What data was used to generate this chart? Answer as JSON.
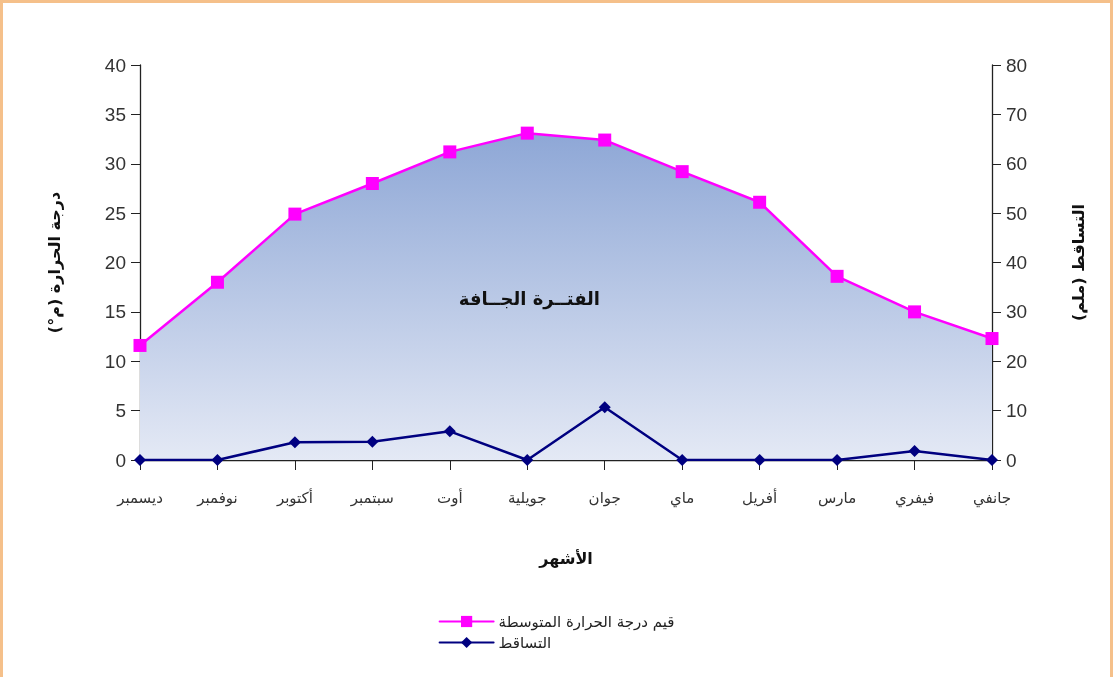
{
  "chart_data": {
    "type": "line",
    "xlabel": "الأشهر",
    "ylabel": "درجة الحرارة (م°)",
    "y2label": "التساقط (ملم)",
    "categories": [
      "ديسمبر",
      "نوفمبر",
      "أكتوبر",
      "سبتمبر",
      "أوت",
      "جويلية",
      "جوان",
      "ماي",
      "أفريل",
      "مارس",
      "فيفري",
      "جانفي"
    ],
    "series": [
      {
        "name": "قيم درجة الحرارة المتوسطة",
        "type": "area",
        "color": "#ff00ff",
        "marker": "square",
        "values": [
          11.6,
          18,
          24.9,
          28,
          31.2,
          33.1,
          32.4,
          29.2,
          26.1,
          18.6,
          15,
          12.3
        ]
      },
      {
        "name": "التساقط",
        "color": "#000080",
        "marker": "diamond",
        "axis": "y2",
        "values": [
          0,
          0,
          3.6,
          3.7,
          5.8,
          0,
          10.7,
          0,
          0,
          0,
          1.8,
          0
        ]
      }
    ],
    "ylim": [
      0,
      40
    ],
    "yticks": [
      0,
      5,
      10,
      15,
      20,
      25,
      30,
      35,
      40
    ],
    "y2lim": [
      0,
      80
    ],
    "y2ticks": [
      0,
      10,
      20,
      30,
      40,
      50,
      60,
      70,
      80
    ],
    "grid": false,
    "legend": "bottom",
    "annotations": [
      "الفتــرة الجــافة"
    ]
  }
}
